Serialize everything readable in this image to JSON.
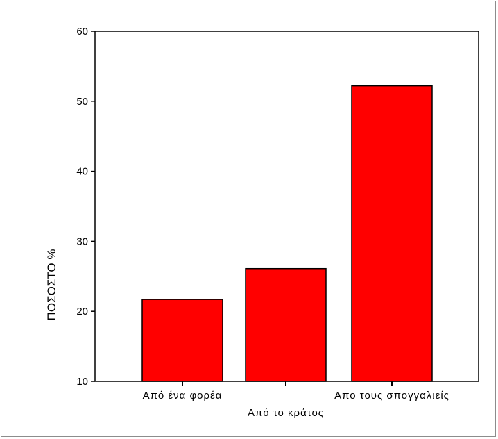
{
  "chart_data": {
    "type": "bar",
    "categories": [
      "Από ένα φορέα",
      "Από το κράτος",
      "Απο τους σπογγαλιείς"
    ],
    "values": [
      21.7,
      26.1,
      52.2
    ],
    "ylabel": "ΠΟΣΟΣΤΟ %",
    "xlabel": "",
    "ylim": [
      10,
      60
    ],
    "yticks": [
      10,
      20,
      30,
      40,
      50,
      60
    ],
    "bar_color": "#ff0000",
    "grid": false,
    "legend": "none"
  }
}
